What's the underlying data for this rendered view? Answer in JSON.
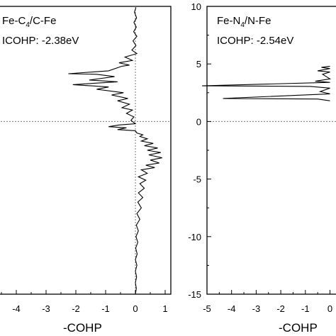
{
  "chart_data": [
    {
      "type": "line",
      "panel": "left",
      "annotation_line1": "Fe-C",
      "annotation_sub": "4",
      "annotation_line1_suffix": "/C-Fe",
      "annotation_line2": "ICOHP: -2.38eV",
      "xlabel": "-COHP",
      "ylabel": "",
      "xlim": [
        -5,
        1.3
      ],
      "ylim": [
        -15,
        10
      ],
      "xticks": [
        "-4",
        "-3",
        "-2",
        "-1",
        "0",
        "1"
      ],
      "xtick_values": [
        -4,
        -3,
        -2,
        -1,
        0,
        1
      ],
      "yticks": [],
      "reference_lines": {
        "x_zero": true,
        "y_zero": true,
        "style": "dotted"
      },
      "series": [
        {
          "color": "#000000",
          "points": [
            [
              0.02,
              9.9
            ],
            [
              -0.03,
              9.5
            ],
            [
              0.04,
              9.0
            ],
            [
              -0.05,
              8.6
            ],
            [
              0.03,
              8.2
            ],
            [
              -0.06,
              7.8
            ],
            [
              0.05,
              7.4
            ],
            [
              -0.08,
              7.0
            ],
            [
              0.02,
              6.6
            ],
            [
              -0.12,
              6.2
            ],
            [
              0.05,
              5.9
            ],
            [
              -0.35,
              5.6
            ],
            [
              -0.1,
              5.3
            ],
            [
              -0.55,
              5.1
            ],
            [
              -0.2,
              4.9
            ],
            [
              -0.45,
              4.8
            ],
            [
              -0.9,
              4.4
            ],
            [
              -2.25,
              4.15
            ],
            [
              -1.3,
              4.1
            ],
            [
              -0.7,
              3.9
            ],
            [
              -1.55,
              3.6
            ],
            [
              -0.6,
              3.45
            ],
            [
              -2.1,
              3.2
            ],
            [
              -0.9,
              3.0
            ],
            [
              -1.3,
              2.8
            ],
            [
              -0.4,
              2.5
            ],
            [
              -0.8,
              2.3
            ],
            [
              -0.25,
              2.0
            ],
            [
              -0.6,
              1.8
            ],
            [
              -0.2,
              1.5
            ],
            [
              -0.45,
              1.2
            ],
            [
              -0.1,
              1.0
            ],
            [
              -0.3,
              0.7
            ],
            [
              -0.05,
              0.4
            ],
            [
              -0.15,
              0.1
            ],
            [
              0.0,
              -0.2
            ],
            [
              -0.55,
              -0.3
            ],
            [
              -0.9,
              -0.45
            ],
            [
              -0.3,
              -0.55
            ],
            [
              -0.6,
              -0.7
            ],
            [
              0.0,
              -0.8
            ],
            [
              0.05,
              -1.0
            ],
            [
              0.25,
              -1.15
            ],
            [
              0.15,
              -1.3
            ],
            [
              0.4,
              -1.5
            ],
            [
              0.2,
              -1.7
            ],
            [
              0.6,
              -1.9
            ],
            [
              0.3,
              -2.1
            ],
            [
              0.75,
              -2.3
            ],
            [
              0.4,
              -2.5
            ],
            [
              0.85,
              -2.7
            ],
            [
              0.45,
              -2.9
            ],
            [
              0.9,
              -3.15
            ],
            [
              0.5,
              -3.35
            ],
            [
              0.8,
              -3.6
            ],
            [
              0.35,
              -3.8
            ],
            [
              0.65,
              -4.0
            ],
            [
              0.2,
              -4.2
            ],
            [
              0.4,
              -4.5
            ],
            [
              0.1,
              -4.8
            ],
            [
              0.35,
              -5.1
            ],
            [
              0.15,
              -5.4
            ],
            [
              0.3,
              -5.8
            ],
            [
              0.1,
              -6.2
            ],
            [
              0.25,
              -6.6
            ],
            [
              0.08,
              -7.0
            ],
            [
              0.2,
              -7.5
            ],
            [
              0.05,
              -8.0
            ],
            [
              0.15,
              -8.5
            ],
            [
              0.03,
              -9.0
            ],
            [
              0.1,
              -9.5
            ],
            [
              0.02,
              -10.0
            ],
            [
              0.08,
              -10.5
            ],
            [
              0.01,
              -11.0
            ],
            [
              0.06,
              -11.5
            ],
            [
              0.0,
              -12.0
            ],
            [
              0.05,
              -12.5
            ],
            [
              0.0,
              -13.0
            ],
            [
              0.04,
              -13.5
            ],
            [
              0.0,
              -14.0
            ],
            [
              0.03,
              -14.5
            ],
            [
              0.0,
              -15.0
            ]
          ]
        }
      ]
    },
    {
      "type": "line",
      "panel": "right",
      "annotation_line1": "Fe-N",
      "annotation_sub": "4",
      "annotation_line1_suffix": "/N-Fe",
      "annotation_line2": "ICOHP: -2.54eV",
      "xlabel": "-COHP",
      "ylabel": "",
      "xlim": [
        -5,
        1.3
      ],
      "ylim": [
        -15,
        10
      ],
      "xticks": [
        "-5",
        "-4",
        "-3",
        "-2",
        "-1",
        "0"
      ],
      "xtick_values": [
        -5,
        -4,
        -3,
        -2,
        -1,
        0
      ],
      "yticks": [
        "10",
        "5",
        "0",
        "-5",
        "-10",
        "-15"
      ],
      "ytick_values": [
        10,
        5,
        0,
        -5,
        -10,
        -15
      ],
      "reference_lines": {
        "x_zero": false,
        "y_zero": true,
        "style": "dotted"
      },
      "series": [
        {
          "color": "#000000",
          "points": [
            [
              0.0,
              4.8
            ],
            [
              -0.35,
              4.7
            ],
            [
              0.0,
              4.6
            ],
            [
              -0.5,
              4.4
            ],
            [
              0.0,
              4.3
            ],
            [
              -0.3,
              4.1
            ],
            [
              0.0,
              3.7
            ],
            [
              -0.6,
              3.5
            ],
            [
              0.0,
              3.4
            ],
            [
              -5.2,
              3.1
            ],
            [
              -0.8,
              3.05
            ],
            [
              0.0,
              2.9
            ],
            [
              -0.4,
              2.6
            ],
            [
              0.0,
              2.4
            ],
            [
              -4.35,
              2.0
            ],
            [
              -0.5,
              1.95
            ],
            [
              0.0,
              1.8
            ]
          ]
        }
      ]
    }
  ]
}
